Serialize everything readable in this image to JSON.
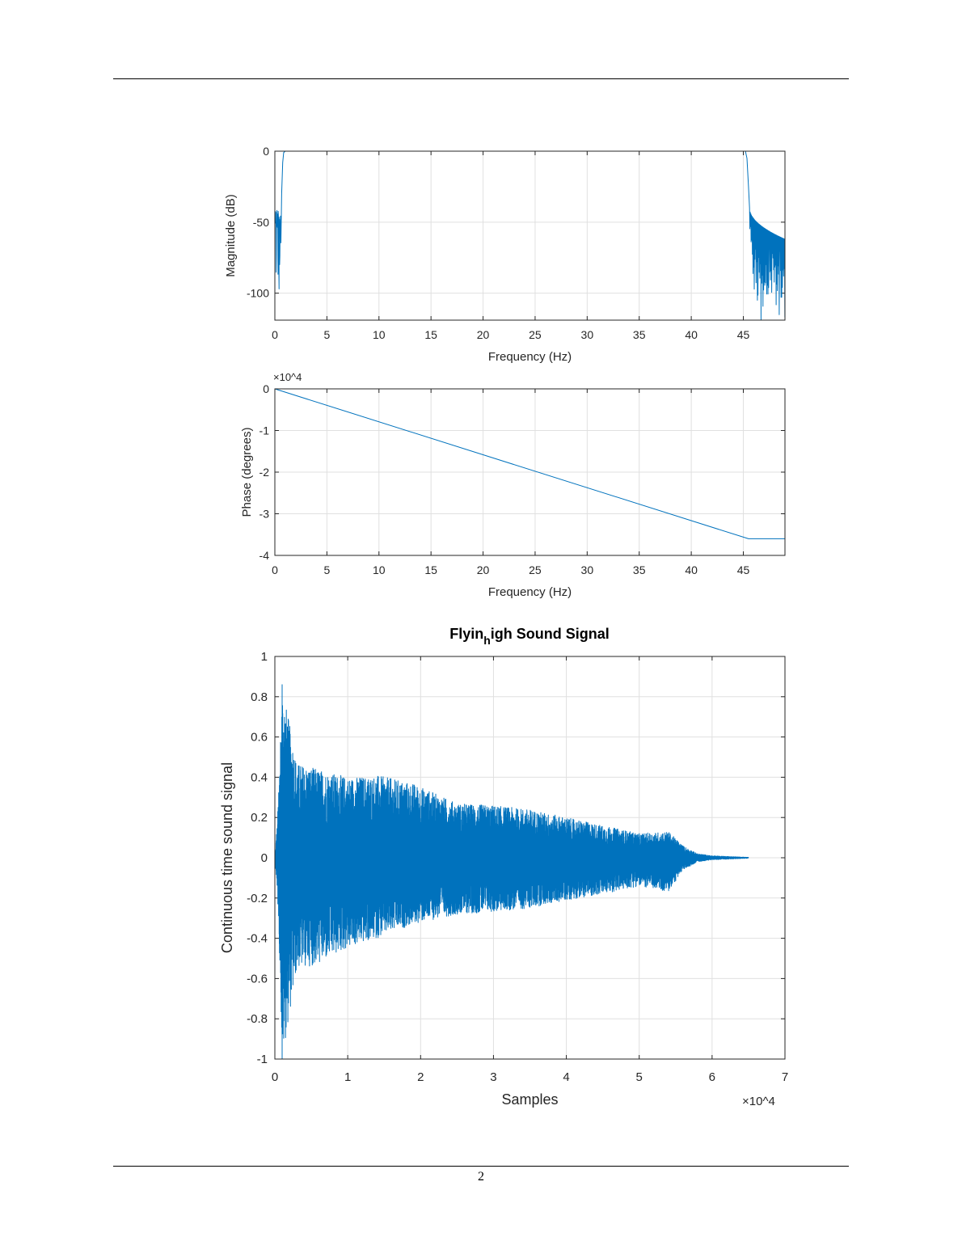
{
  "page": {
    "number": "2"
  },
  "colors": {
    "line": "#0072BD",
    "grid": "#e0e0e0",
    "axis": "#262626"
  },
  "chart_data": [
    {
      "type": "line",
      "id": "magnitude",
      "title": "",
      "xlabel": "Frequency (Hz)",
      "ylabel": "Magnitude (dB)",
      "xlim": [
        0,
        49
      ],
      "ylim": [
        -119,
        0
      ],
      "xticks": [
        0,
        5,
        10,
        15,
        20,
        25,
        30,
        35,
        40,
        45
      ],
      "yticks": [
        0,
        -50,
        -100
      ],
      "grid": true,
      "description_points": {
        "passband": {
          "from": 0.8,
          "to": 45.2,
          "value": 0
        },
        "low_stopband": {
          "from": 0,
          "to": 0.6,
          "min": -97,
          "max": -38
        },
        "high_stopband": {
          "from": 45.6,
          "to": 49,
          "envelope_start": -40,
          "envelope_end": -62,
          "min": -119
        }
      }
    },
    {
      "type": "line",
      "id": "phase",
      "xlabel": "Frequency (Hz)",
      "ylabel": "Phase (degrees)",
      "exponent_label": "×10^4",
      "xlim": [
        0,
        49
      ],
      "ylim": [
        -4,
        0
      ],
      "xticks": [
        0,
        5,
        10,
        15,
        20,
        25,
        30,
        35,
        40,
        45
      ],
      "yticks": [
        0,
        -1,
        -2,
        -3,
        -4
      ],
      "grid": true,
      "x": [
        0,
        45.5,
        49
      ],
      "y": [
        0,
        -3.6,
        -3.6
      ]
    },
    {
      "type": "line",
      "id": "signal",
      "title_main": "Flyin",
      "title_sub": "h",
      "title_rest": "igh Sound Signal",
      "xlabel": "Samples",
      "ylabel": "Continuous time sound signal",
      "exponent_label": "×10^4",
      "xlim": [
        0,
        7
      ],
      "ylim": [
        -1,
        1
      ],
      "xticks": [
        0,
        1,
        2,
        3,
        4,
        5,
        6,
        7
      ],
      "yticks": [
        1,
        0.8,
        0.6,
        0.4,
        0.2,
        0,
        -0.2,
        -0.4,
        -0.6,
        -0.8,
        -1
      ],
      "grid": true,
      "envelope": {
        "x": [
          0,
          0.05,
          0.1,
          0.3,
          0.6,
          1.0,
          1.4,
          1.9,
          2.5,
          3.0,
          3.5,
          4.0,
          4.5,
          5.0,
          5.4,
          5.6,
          5.8,
          6.0,
          6.5
        ],
        "upper": [
          0,
          0.3,
          0.86,
          0.47,
          0.44,
          0.4,
          0.41,
          0.37,
          0.27,
          0.26,
          0.24,
          0.2,
          0.16,
          0.12,
          0.13,
          0.06,
          0.02,
          0.01,
          0.002
        ],
        "lower": [
          0,
          -0.3,
          -1.0,
          -0.55,
          -0.53,
          -0.45,
          -0.4,
          -0.33,
          -0.28,
          -0.27,
          -0.25,
          -0.21,
          -0.18,
          -0.14,
          -0.17,
          -0.06,
          -0.02,
          -0.01,
          -0.002
        ]
      }
    }
  ]
}
